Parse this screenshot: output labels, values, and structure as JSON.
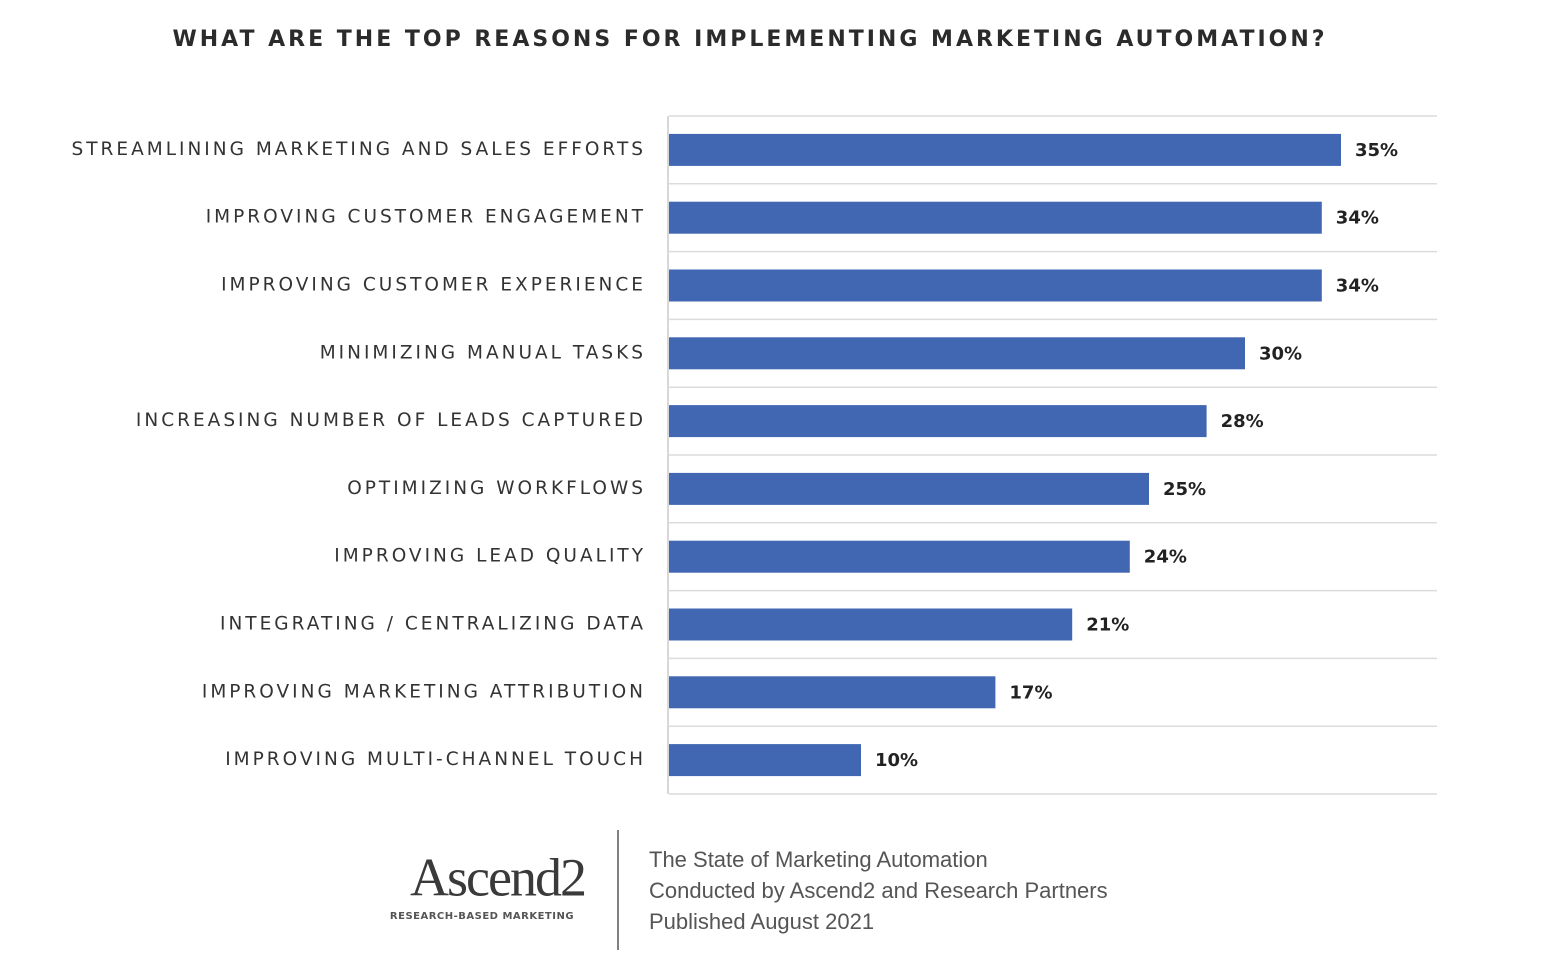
{
  "chart_data": {
    "type": "hbar",
    "title": "WHAT ARE THE TOP REASONS FOR IMPLEMENTING MARKETING AUTOMATION?",
    "categories": [
      "STREAMLINING MARKETING AND SALES EFFORTS",
      "IMPROVING CUSTOMER ENGAGEMENT",
      "IMPROVING CUSTOMER EXPERIENCE",
      "MINIMIZING MANUAL TASKS",
      "INCREASING NUMBER OF LEADS CAPTURED",
      "OPTIMIZING WORKFLOWS",
      "IMPROVING LEAD QUALITY",
      "INTEGRATING / CENTRALIZING DATA",
      "IMPROVING MARKETING ATTRIBUTION",
      "IMPROVING MULTI-CHANNEL TOUCH"
    ],
    "values": [
      35,
      34,
      34,
      30,
      28,
      25,
      24,
      21,
      17,
      10
    ],
    "value_labels": [
      "35%",
      "34%",
      "34%",
      "30%",
      "28%",
      "25%",
      "24%",
      "21%",
      "17%",
      "10%"
    ],
    "color": "#4267b2",
    "xlim": [
      0,
      40
    ]
  },
  "footer": {
    "logo": "Ascend2",
    "logo_tagline": "RESEARCH-BASED MARKETING",
    "lines": [
      "The State of Marketing Automation",
      "Conducted by Ascend2 and Research Partners",
      "Published August 2021"
    ]
  }
}
